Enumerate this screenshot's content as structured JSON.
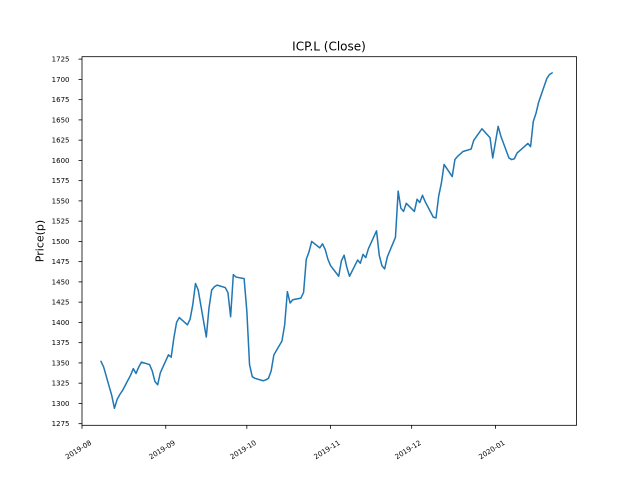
{
  "figure": {
    "title": "ICP.L (Close)",
    "ylabel": "Price(p)",
    "background": "#ffffff",
    "line_color": "#1f77b4",
    "axis_color": "#000000"
  },
  "chart_data": {
    "type": "line",
    "title": "ICP.L (Close)",
    "xlabel": "",
    "ylabel": "Price(p)",
    "grid": false,
    "legend": null,
    "ylim": [
      1273,
      1728
    ],
    "yticks": [
      1275,
      1300,
      1325,
      1350,
      1375,
      1400,
      1425,
      1450,
      1475,
      1500,
      1525,
      1550,
      1575,
      1600,
      1625,
      1650,
      1675,
      1700,
      1725
    ],
    "xticks": [
      {
        "label": "2019-08",
        "date": "2019-08-01"
      },
      {
        "label": "2019-09",
        "date": "2019-09-01"
      },
      {
        "label": "2019-10",
        "date": "2019-10-01"
      },
      {
        "label": "2019-11",
        "date": "2019-11-01"
      },
      {
        "label": "2019-12",
        "date": "2019-12-01"
      },
      {
        "label": "2020-01",
        "date": "2020-01-01"
      }
    ],
    "x_axis_start": "2019-08-01",
    "x_axis_span_days": 183,
    "series": [
      {
        "name": "Close",
        "points": [
          [
            "2019-08-08",
            1352
          ],
          [
            "2019-08-09",
            1345
          ],
          [
            "2019-08-12",
            1310
          ],
          [
            "2019-08-13",
            1294
          ],
          [
            "2019-08-14",
            1305
          ],
          [
            "2019-08-15",
            1311
          ],
          [
            "2019-08-16",
            1316
          ],
          [
            "2019-08-19",
            1335
          ],
          [
            "2019-08-20",
            1343
          ],
          [
            "2019-08-21",
            1337
          ],
          [
            "2019-08-22",
            1345
          ],
          [
            "2019-08-23",
            1351
          ],
          [
            "2019-08-26",
            1348
          ],
          [
            "2019-08-27",
            1340
          ],
          [
            "2019-08-28",
            1327
          ],
          [
            "2019-08-29",
            1323
          ],
          [
            "2019-08-30",
            1338
          ],
          [
            "2019-09-02",
            1360
          ],
          [
            "2019-09-03",
            1357
          ],
          [
            "2019-09-04",
            1381
          ],
          [
            "2019-09-05",
            1400
          ],
          [
            "2019-09-06",
            1406
          ],
          [
            "2019-09-09",
            1397
          ],
          [
            "2019-09-10",
            1404
          ],
          [
            "2019-09-11",
            1422
          ],
          [
            "2019-09-12",
            1448
          ],
          [
            "2019-09-13",
            1440
          ],
          [
            "2019-09-16",
            1382
          ],
          [
            "2019-09-17",
            1418
          ],
          [
            "2019-09-18",
            1440
          ],
          [
            "2019-09-19",
            1444
          ],
          [
            "2019-09-20",
            1446
          ],
          [
            "2019-09-23",
            1443
          ],
          [
            "2019-09-24",
            1437
          ],
          [
            "2019-09-25",
            1407
          ],
          [
            "2019-09-26",
            1459
          ],
          [
            "2019-09-27",
            1456
          ],
          [
            "2019-09-30",
            1454
          ],
          [
            "2019-10-01",
            1414
          ],
          [
            "2019-10-02",
            1348
          ],
          [
            "2019-10-03",
            1333
          ],
          [
            "2019-10-04",
            1331
          ],
          [
            "2019-10-07",
            1328
          ],
          [
            "2019-10-08",
            1329
          ],
          [
            "2019-10-09",
            1331
          ],
          [
            "2019-10-10",
            1340
          ],
          [
            "2019-10-11",
            1360
          ],
          [
            "2019-10-14",
            1377
          ],
          [
            "2019-10-15",
            1397
          ],
          [
            "2019-10-16",
            1438
          ],
          [
            "2019-10-17",
            1424
          ],
          [
            "2019-10-18",
            1428
          ],
          [
            "2019-10-21",
            1430
          ],
          [
            "2019-10-22",
            1437
          ],
          [
            "2019-10-23",
            1478
          ],
          [
            "2019-10-24",
            1487
          ],
          [
            "2019-10-25",
            1500
          ],
          [
            "2019-10-28",
            1492
          ],
          [
            "2019-10-29",
            1497
          ],
          [
            "2019-10-30",
            1490
          ],
          [
            "2019-10-31",
            1478
          ],
          [
            "2019-11-01",
            1470
          ],
          [
            "2019-11-04",
            1457
          ],
          [
            "2019-11-05",
            1476
          ],
          [
            "2019-11-06",
            1483
          ],
          [
            "2019-11-07",
            1468
          ],
          [
            "2019-11-08",
            1457
          ],
          [
            "2019-11-11",
            1477
          ],
          [
            "2019-11-12",
            1473
          ],
          [
            "2019-11-13",
            1484
          ],
          [
            "2019-11-14",
            1480
          ],
          [
            "2019-11-15",
            1491
          ],
          [
            "2019-11-18",
            1513
          ],
          [
            "2019-11-19",
            1483
          ],
          [
            "2019-11-20",
            1470
          ],
          [
            "2019-11-21",
            1466
          ],
          [
            "2019-11-22",
            1481
          ],
          [
            "2019-11-25",
            1505
          ],
          [
            "2019-11-26",
            1562
          ],
          [
            "2019-11-27",
            1541
          ],
          [
            "2019-11-28",
            1537
          ],
          [
            "2019-11-29",
            1547
          ],
          [
            "2019-12-02",
            1537
          ],
          [
            "2019-12-03",
            1552
          ],
          [
            "2019-12-04",
            1548
          ],
          [
            "2019-12-05",
            1557
          ],
          [
            "2019-12-06",
            1549
          ],
          [
            "2019-12-09",
            1530
          ],
          [
            "2019-12-10",
            1529
          ],
          [
            "2019-12-11",
            1556
          ],
          [
            "2019-12-12",
            1572
          ],
          [
            "2019-12-13",
            1595
          ],
          [
            "2019-12-16",
            1580
          ],
          [
            "2019-12-17",
            1601
          ],
          [
            "2019-12-18",
            1605
          ],
          [
            "2019-12-19",
            1608
          ],
          [
            "2019-12-20",
            1611
          ],
          [
            "2019-12-23",
            1614
          ],
          [
            "2019-12-24",
            1625
          ],
          [
            "2019-12-27",
            1639
          ],
          [
            "2019-12-30",
            1628
          ],
          [
            "2019-12-31",
            1603
          ],
          [
            "2020-01-02",
            1642
          ],
          [
            "2020-01-03",
            1630
          ],
          [
            "2020-01-06",
            1603
          ],
          [
            "2020-01-07",
            1601
          ],
          [
            "2020-01-08",
            1602
          ],
          [
            "2020-01-09",
            1609
          ],
          [
            "2020-01-10",
            1612
          ],
          [
            "2020-01-13",
            1621
          ],
          [
            "2020-01-14",
            1617
          ],
          [
            "2020-01-15",
            1648
          ],
          [
            "2020-01-16",
            1658
          ],
          [
            "2020-01-17",
            1672
          ],
          [
            "2020-01-20",
            1701
          ],
          [
            "2020-01-21",
            1706
          ],
          [
            "2020-01-22",
            1708
          ]
        ]
      }
    ]
  }
}
